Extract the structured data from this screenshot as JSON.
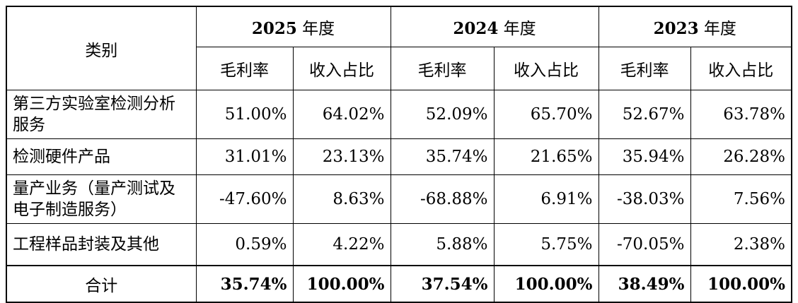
{
  "table": {
    "category_header": "类别",
    "years": [
      {
        "year": "2025",
        "unit": " 年度"
      },
      {
        "year": "2024",
        "unit": " 年度"
      },
      {
        "year": "2023",
        "unit": " 年度"
      }
    ],
    "sub_headers": [
      "毛利率",
      "收入占比"
    ],
    "rows": [
      {
        "category": "第三方实验室检测分析服务",
        "values": [
          "51.00%",
          "64.02%",
          "52.09%",
          "65.70%",
          "52.67%",
          "63.78%"
        ]
      },
      {
        "category": "检测硬件产品",
        "values": [
          "31.01%",
          "23.13%",
          "35.74%",
          "21.65%",
          "35.94%",
          "26.28%"
        ]
      },
      {
        "category": "量产业务（量产测试及电子制造服务）",
        "values": [
          "-47.60%",
          "8.63%",
          "-68.88%",
          "6.91%",
          "-38.03%",
          "7.56%"
        ]
      },
      {
        "category": "工程样品封装及其他",
        "values": [
          "0.59%",
          "4.22%",
          "5.88%",
          "5.75%",
          "-70.05%",
          "2.38%"
        ]
      }
    ],
    "total": {
      "category": "合计",
      "values": [
        "35.74%",
        "100.00%",
        "37.54%",
        "100.00%",
        "38.49%",
        "100.00%"
      ]
    }
  }
}
